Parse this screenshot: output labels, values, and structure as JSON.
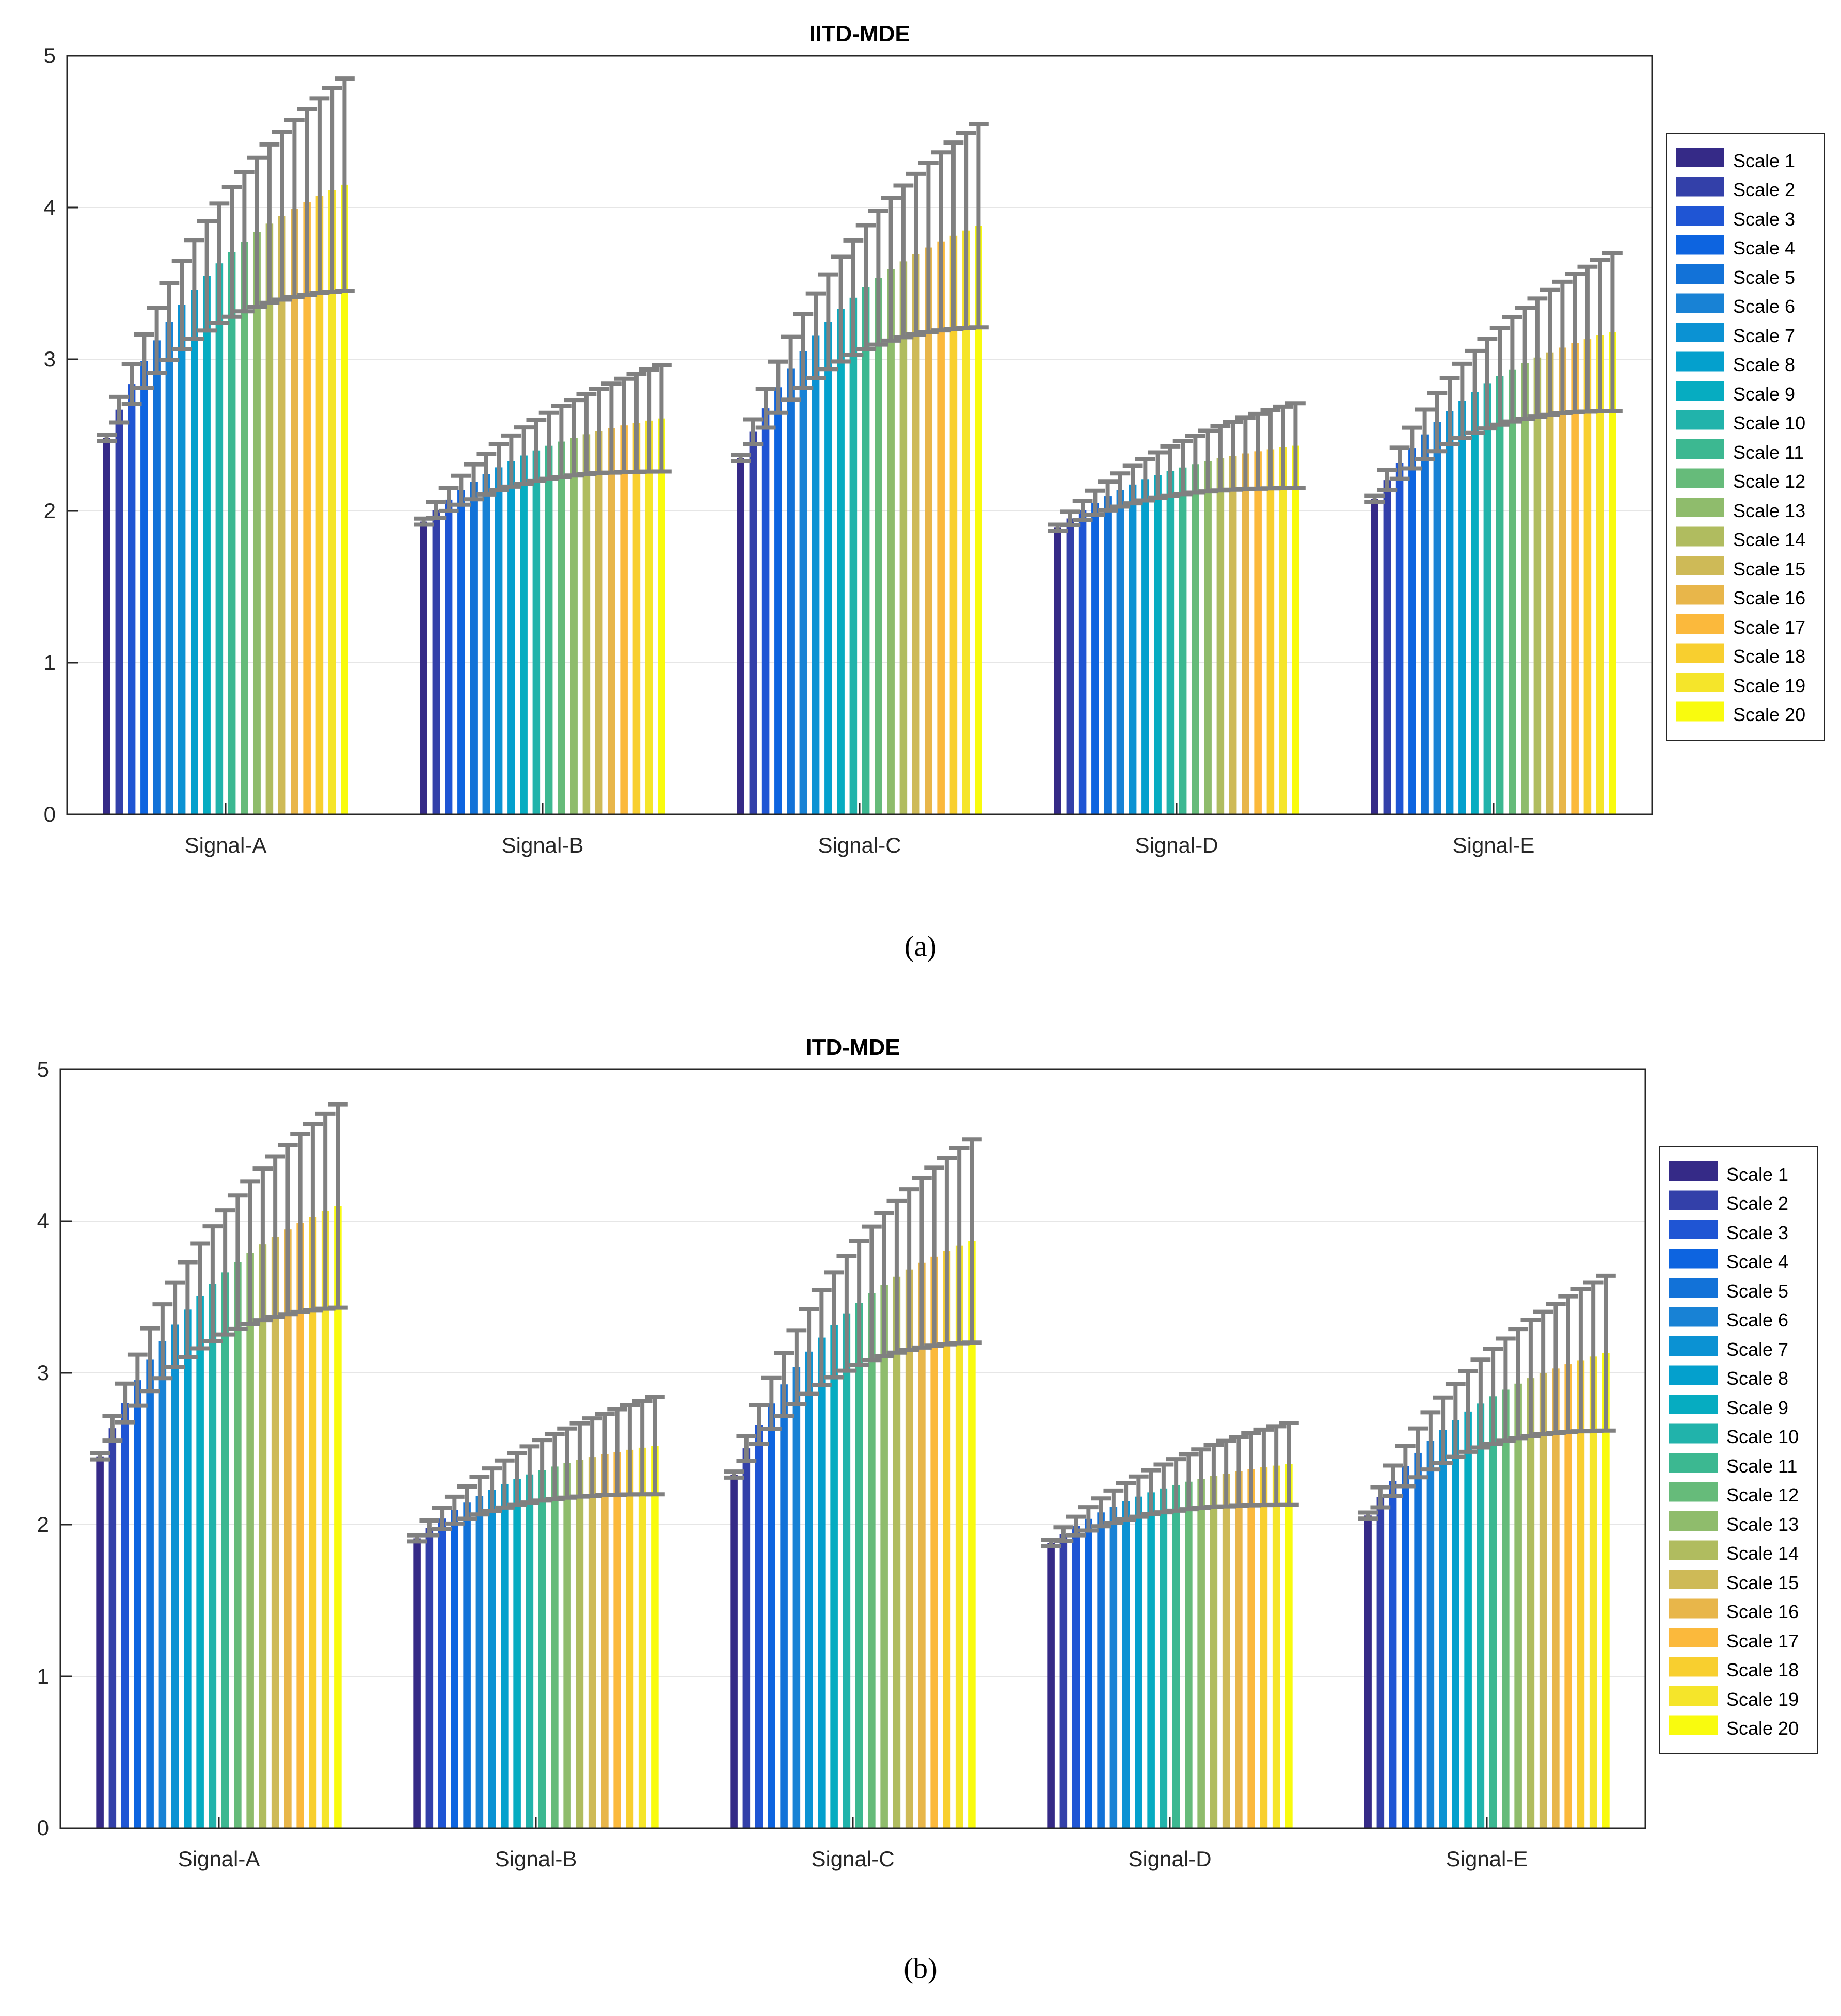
{
  "chart_data": [
    {
      "panel_label": "(a)",
      "type": "bar",
      "title": "IITD-MDE",
      "xlabel": "",
      "ylabel": "",
      "ylim": [
        0,
        5
      ],
      "yticks": [
        "0",
        "1",
        "2",
        "3",
        "4",
        "5"
      ],
      "grid": true,
      "legend": "right",
      "categories": [
        "Signal-A",
        "Signal-B",
        "Signal-C",
        "Signal-D",
        "Signal-E"
      ],
      "series_names": [
        "Scale 1",
        "Scale 2",
        "Scale 3",
        "Scale 4",
        "Scale 5",
        "Scale 6",
        "Scale 7",
        "Scale 8",
        "Scale 9",
        "Scale 10",
        "Scale 11",
        "Scale 12",
        "Scale 13",
        "Scale 14",
        "Scale 15",
        "Scale 16",
        "Scale 17",
        "Scale 18",
        "Scale 19",
        "Scale 20"
      ],
      "values": [
        {
          "first": 2.48,
          "last": 4.15
        },
        {
          "first": 1.93,
          "last": 2.61
        },
        {
          "first": 2.35,
          "last": 3.88
        },
        {
          "first": 1.89,
          "last": 2.43
        },
        {
          "first": 2.08,
          "last": 3.18
        }
      ],
      "errors": [
        {
          "first": 0.02,
          "last": 0.7
        },
        {
          "first": 0.02,
          "last": 0.35
        },
        {
          "first": 0.02,
          "last": 0.67
        },
        {
          "first": 0.02,
          "last": 0.28
        },
        {
          "first": 0.02,
          "last": 0.52
        }
      ],
      "error_color": "#808080"
    },
    {
      "panel_label": "(b)",
      "type": "bar",
      "title": "ITD-MDE",
      "xlabel": "",
      "ylabel": "",
      "ylim": [
        0,
        5
      ],
      "yticks": [
        "0",
        "1",
        "2",
        "3",
        "4",
        "5"
      ],
      "grid": true,
      "legend": "right",
      "categories": [
        "Signal-A",
        "Signal-B",
        "Signal-C",
        "Signal-D",
        "Signal-E"
      ],
      "series_names": [
        "Scale 1",
        "Scale 2",
        "Scale 3",
        "Scale 4",
        "Scale 5",
        "Scale 6",
        "Scale 7",
        "Scale 8",
        "Scale 9",
        "Scale 10",
        "Scale 11",
        "Scale 12",
        "Scale 13",
        "Scale 14",
        "Scale 15",
        "Scale 16",
        "Scale 17",
        "Scale 18",
        "Scale 19",
        "Scale 20"
      ],
      "values": [
        {
          "first": 2.45,
          "last": 4.1
        },
        {
          "first": 1.91,
          "last": 2.52
        },
        {
          "first": 2.33,
          "last": 3.87
        },
        {
          "first": 1.88,
          "last": 2.4
        },
        {
          "first": 2.06,
          "last": 3.13
        }
      ],
      "errors": [
        {
          "first": 0.02,
          "last": 0.67
        },
        {
          "first": 0.02,
          "last": 0.32
        },
        {
          "first": 0.02,
          "last": 0.67
        },
        {
          "first": 0.02,
          "last": 0.27
        },
        {
          "first": 0.02,
          "last": 0.51
        }
      ],
      "error_color": "#808080"
    }
  ],
  "palette": [
    "#352a87",
    "#3340a9",
    "#1f55d4",
    "#0d64e0",
    "#1272d8",
    "#1882d5",
    "#0b92d3",
    "#04a0cd",
    "#06acc1",
    "#21b3ab",
    "#3cb891",
    "#66bb7a",
    "#8fbc6c",
    "#b0bc5f",
    "#ceba57",
    "#e8b64a",
    "#fbb93c",
    "#f8cf2f",
    "#f5e52a",
    "#f9fb0e"
  ]
}
